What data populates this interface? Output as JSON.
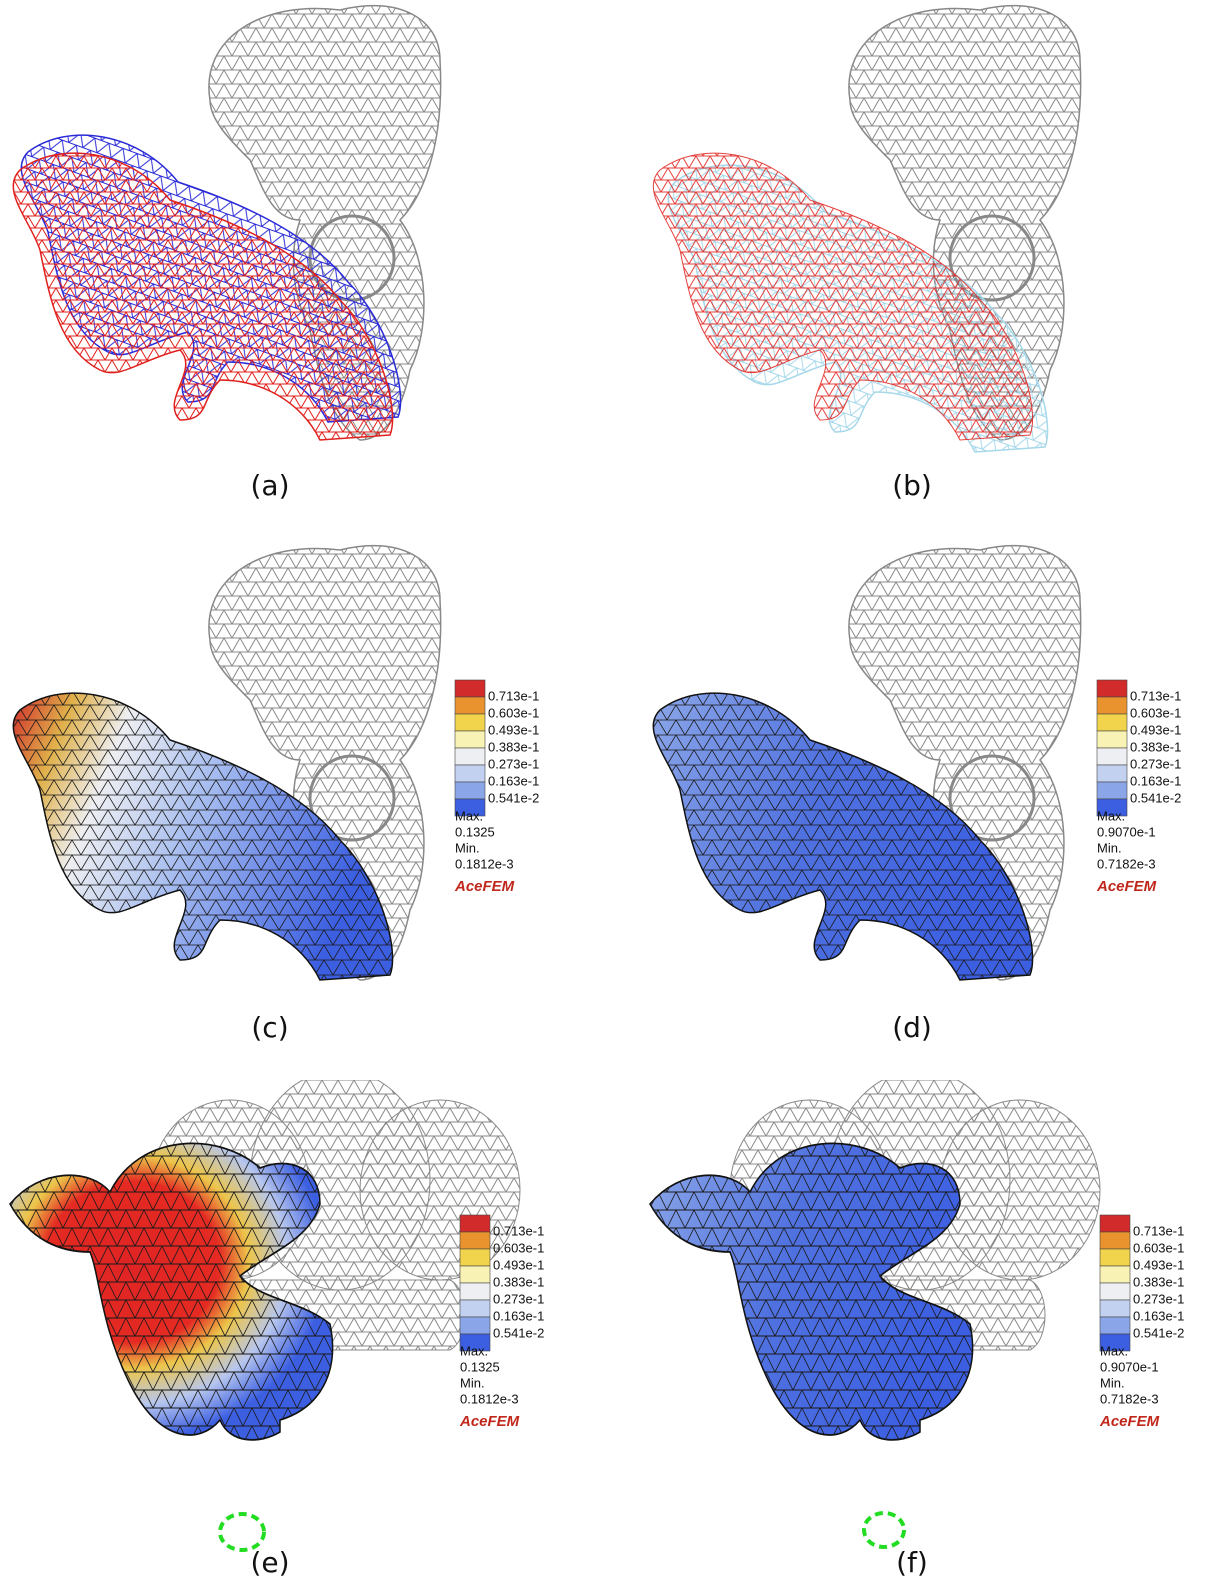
{
  "legend_colors": [
    "#d22b2b",
    "#e8932e",
    "#f1d44c",
    "#f8f3b4",
    "#eeeff2",
    "#c3d1f0",
    "#8ba6e8",
    "#3c5fe2"
  ],
  "panels": [
    {
      "label": "(a)"
    },
    {
      "label": "(b)"
    },
    {
      "label": "(c)",
      "legend": {
        "levels": [
          "0.713e-1",
          "0.603e-1",
          "0.493e-1",
          "0.383e-1",
          "0.273e-1",
          "0.163e-1",
          "0.541e-2"
        ],
        "max_label": "Max.",
        "max": "0.1325",
        "min_label": "Min.",
        "min": "0.1812e-3",
        "brand": "AceFEM"
      }
    },
    {
      "label": "(d)",
      "legend": {
        "levels": [
          "0.713e-1",
          "0.603e-1",
          "0.493e-1",
          "0.383e-1",
          "0.273e-1",
          "0.163e-1",
          "0.541e-2"
        ],
        "max_label": "Max.",
        "max": "0.9070e-1",
        "min_label": "Min.",
        "min": "0.7182e-3",
        "brand": "AceFEM"
      }
    },
    {
      "label": "(e)",
      "legend": {
        "levels": [
          "0.713e-1",
          "0.603e-1",
          "0.493e-1",
          "0.383e-1",
          "0.273e-1",
          "0.163e-1",
          "0.541e-2"
        ],
        "max_label": "Max.",
        "max": "0.1325",
        "min_label": "Min.",
        "min": "0.1812e-3",
        "brand": "AceFEM"
      }
    },
    {
      "label": "(f)",
      "legend": {
        "levels": [
          "0.713e-1",
          "0.603e-1",
          "0.493e-1",
          "0.383e-1",
          "0.273e-1",
          "0.163e-1",
          "0.541e-2"
        ],
        "max_label": "Max.",
        "max": "0.9070e-1",
        "min_label": "Min.",
        "min": "0.7182e-3",
        "brand": "AceFEM"
      }
    }
  ]
}
